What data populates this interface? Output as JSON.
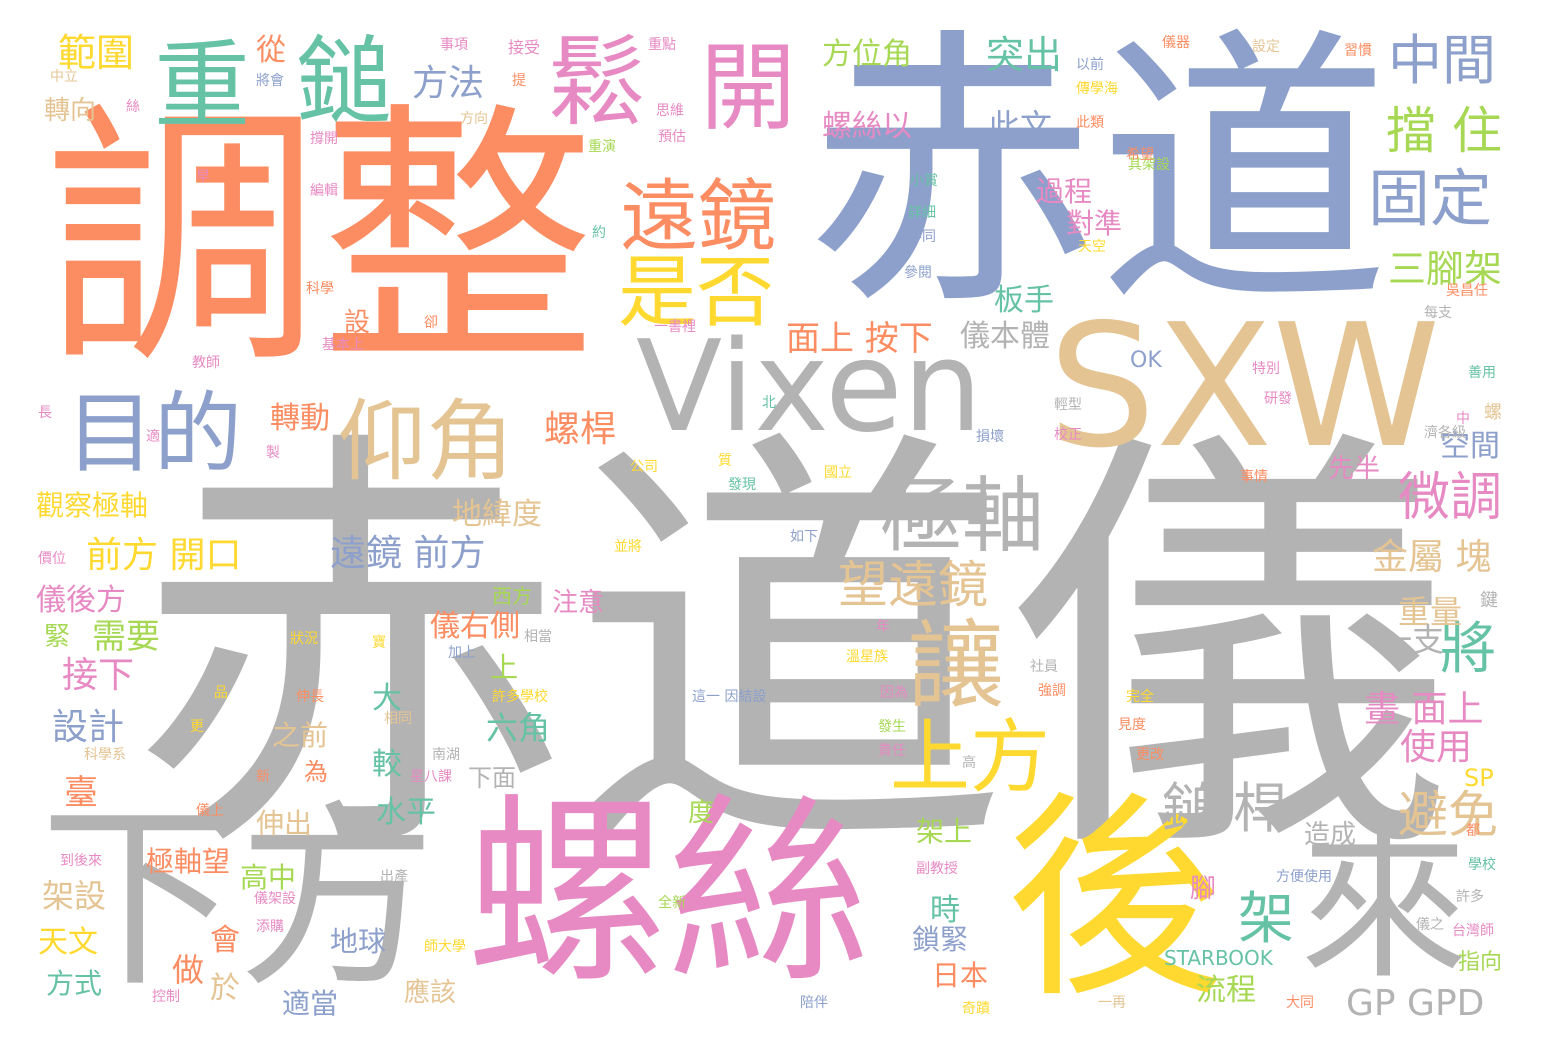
{
  "palette": {
    "gray": "#b3b3b3",
    "orange": "#fc8d62",
    "blue": "#8da0cb",
    "pink": "#e78ac3",
    "green": "#66c2a5",
    "lime": "#a6d854",
    "yellow": "#ffd92f",
    "tan": "#e5c494"
  },
  "words": [
    {
      "text": "赤道儀",
      "color": "gray"
    },
    {
      "text": "赤道",
      "color": "blue"
    },
    {
      "text": "調整",
      "color": "orange"
    },
    {
      "text": "SXW",
      "color": "tan"
    },
    {
      "text": "Vixen",
      "color": "gray"
    },
    {
      "text": "螺絲",
      "color": "pink"
    },
    {
      "text": "下方",
      "color": "gray"
    },
    {
      "text": "後",
      "color": "yellow"
    },
    {
      "text": "來",
      "color": "gray"
    },
    {
      "text": "重",
      "color": "green"
    },
    {
      "text": "鎚",
      "color": "green"
    },
    {
      "text": "鬆",
      "color": "pink"
    },
    {
      "text": "開",
      "color": "pink"
    },
    {
      "text": "目的",
      "color": "blue"
    },
    {
      "text": "仰角",
      "color": "tan"
    },
    {
      "text": "遠鏡",
      "color": "orange"
    },
    {
      "text": "是否",
      "color": "yellow"
    },
    {
      "text": "極軸",
      "color": "gray"
    },
    {
      "text": "讓",
      "color": "tan"
    },
    {
      "text": "上方",
      "color": "yellow"
    },
    {
      "text": "中間",
      "color": "blue"
    },
    {
      "text": "擋 住",
      "color": "lime"
    },
    {
      "text": "固定",
      "color": "blue"
    },
    {
      "text": "望遠鏡",
      "color": "tan"
    },
    {
      "text": "微調",
      "color": "pink"
    },
    {
      "text": "鎚 桿",
      "color": "gray"
    },
    {
      "text": "架",
      "color": "green"
    },
    {
      "text": "將",
      "color": "green"
    },
    {
      "text": "避免",
      "color": "tan"
    },
    {
      "text": "範圍",
      "color": "yellow"
    },
    {
      "text": "方法",
      "color": "blue"
    },
    {
      "text": "突出",
      "color": "green"
    },
    {
      "text": "此文",
      "color": "blue"
    },
    {
      "text": "方位角",
      "color": "lime"
    },
    {
      "text": "螺絲以",
      "color": "pink"
    },
    {
      "text": "過程",
      "color": "pink"
    },
    {
      "text": "對準",
      "color": "pink"
    },
    {
      "text": "三腳架",
      "color": "lime"
    },
    {
      "text": "板手",
      "color": "green"
    },
    {
      "text": "面上 按下",
      "color": "orange"
    },
    {
      "text": "儀本體",
      "color": "gray"
    },
    {
      "text": "螺桿",
      "color": "orange"
    },
    {
      "text": "遠鏡 前方",
      "color": "blue"
    },
    {
      "text": "地緯度",
      "color": "tan"
    },
    {
      "text": "前方 開口",
      "color": "yellow"
    },
    {
      "text": "觀察極軸",
      "color": "yellow"
    },
    {
      "text": "儀後方",
      "color": "pink"
    },
    {
      "text": "需要",
      "color": "lime"
    },
    {
      "text": "接下",
      "color": "pink"
    },
    {
      "text": "設計",
      "color": "blue"
    },
    {
      "text": "轉動",
      "color": "orange"
    },
    {
      "text": "金屬 塊",
      "color": "tan"
    },
    {
      "text": "空間",
      "color": "blue"
    },
    {
      "text": "重量",
      "color": "tan"
    },
    {
      "text": "一支",
      "color": "gray"
    },
    {
      "text": "畫 面上",
      "color": "pink"
    },
    {
      "text": "使用",
      "color": "pink"
    },
    {
      "text": "儀右側",
      "color": "orange"
    },
    {
      "text": "六角",
      "color": "green"
    },
    {
      "text": "大",
      "color": "green"
    },
    {
      "text": "之前",
      "color": "tan"
    },
    {
      "text": "較",
      "color": "green"
    },
    {
      "text": "水平",
      "color": "green"
    },
    {
      "text": "伸出",
      "color": "tan"
    },
    {
      "text": "極軸望",
      "color": "orange"
    },
    {
      "text": "高中",
      "color": "lime"
    },
    {
      "text": "架設",
      "color": "tan"
    },
    {
      "text": "天文",
      "color": "yellow"
    },
    {
      "text": "方式",
      "color": "green"
    },
    {
      "text": "做",
      "color": "orange"
    },
    {
      "text": "會",
      "color": "orange"
    },
    {
      "text": "於",
      "color": "tan"
    },
    {
      "text": "地球",
      "color": "blue"
    },
    {
      "text": "適當",
      "color": "blue"
    },
    {
      "text": "鎖緊",
      "color": "blue"
    },
    {
      "text": "日本",
      "color": "orange"
    },
    {
      "text": "流程",
      "color": "lime"
    },
    {
      "text": "GP GPD",
      "color": "gray"
    },
    {
      "text": "臺",
      "color": "orange"
    },
    {
      "text": "緊",
      "color": "lime"
    },
    {
      "text": "從",
      "color": "orange"
    },
    {
      "text": "注意",
      "color": "pink"
    },
    {
      "text": "時",
      "color": "green"
    },
    {
      "text": "架上",
      "color": "lime"
    },
    {
      "text": "上",
      "color": "lime"
    },
    {
      "text": "轉向",
      "color": "tan"
    },
    {
      "text": "先半",
      "color": "pink"
    },
    {
      "text": "西方",
      "color": "lime"
    },
    {
      "text": "下面",
      "color": "gray"
    },
    {
      "text": "為",
      "color": "orange"
    },
    {
      "text": "度",
      "color": "lime"
    },
    {
      "text": "腳",
      "color": "pink"
    },
    {
      "text": "應該",
      "color": "tan"
    },
    {
      "text": "造成",
      "color": "gray"
    },
    {
      "text": "SP",
      "color": "yellow"
    },
    {
      "text": "指向",
      "color": "lime"
    },
    {
      "text": "STARBOOK",
      "color": "green"
    },
    {
      "text": "OK",
      "color": "blue"
    },
    {
      "text": "設",
      "color": "orange"
    },
    {
      "text": "事項",
      "color": "pink"
    },
    {
      "text": "接受",
      "color": "pink"
    },
    {
      "text": "重點",
      "color": "pink"
    },
    {
      "text": "以前",
      "color": "blue"
    },
    {
      "text": "儀器",
      "color": "orange"
    },
    {
      "text": "設定",
      "color": "tan"
    },
    {
      "text": "習慣",
      "color": "orange"
    },
    {
      "text": "將會",
      "color": "blue"
    },
    {
      "text": "思維",
      "color": "pink"
    },
    {
      "text": "傳學海",
      "color": "yellow"
    },
    {
      "text": "此類",
      "color": "orange"
    },
    {
      "text": "方向",
      "color": "tan"
    },
    {
      "text": "重演",
      "color": "lime"
    },
    {
      "text": "其架設",
      "color": "lime"
    },
    {
      "text": "希望",
      "color": "orange"
    },
    {
      "text": "小賞",
      "color": "green"
    },
    {
      "text": "詳細",
      "color": "green"
    },
    {
      "text": "不同",
      "color": "blue"
    },
    {
      "text": "參閱",
      "color": "blue"
    },
    {
      "text": "天空",
      "color": "yellow"
    },
    {
      "text": "吳昌任",
      "color": "orange"
    },
    {
      "text": "每支",
      "color": "gray"
    },
    {
      "text": "科學",
      "color": "orange"
    },
    {
      "text": "基本上",
      "color": "pink"
    },
    {
      "text": "教師",
      "color": "pink"
    },
    {
      "text": "一書裡",
      "color": "pink"
    },
    {
      "text": "特別",
      "color": "pink"
    },
    {
      "text": "善用",
      "color": "green"
    },
    {
      "text": "研發",
      "color": "pink"
    },
    {
      "text": "輕型",
      "color": "gray"
    },
    {
      "text": "損壞",
      "color": "blue"
    },
    {
      "text": "校正",
      "color": "pink"
    },
    {
      "text": "公司",
      "color": "yellow"
    },
    {
      "text": "發現",
      "color": "green"
    },
    {
      "text": "國立",
      "color": "yellow"
    },
    {
      "text": "如下",
      "color": "blue"
    },
    {
      "text": "並將",
      "color": "yellow"
    },
    {
      "text": "狀況",
      "color": "yellow"
    },
    {
      "text": "溫星族",
      "color": "yellow"
    },
    {
      "text": "社員",
      "color": "gray"
    },
    {
      "text": "強調",
      "color": "orange"
    },
    {
      "text": "完全",
      "color": "yellow"
    },
    {
      "text": "更改",
      "color": "orange"
    },
    {
      "text": "事情",
      "color": "orange"
    },
    {
      "text": "相當",
      "color": "gray"
    },
    {
      "text": "加上",
      "color": "blue"
    },
    {
      "text": "許多學校",
      "color": "yellow"
    },
    {
      "text": "這一 因結設",
      "color": "blue"
    },
    {
      "text": "因為",
      "color": "pink"
    },
    {
      "text": "發生",
      "color": "lime"
    },
    {
      "text": "責任",
      "color": "pink"
    },
    {
      "text": "高",
      "color": "gray"
    },
    {
      "text": "星八課",
      "color": "pink"
    },
    {
      "text": "南湖",
      "color": "gray"
    },
    {
      "text": "相同",
      "color": "tan"
    },
    {
      "text": "伸長",
      "color": "orange"
    },
    {
      "text": "科學系",
      "color": "tan"
    },
    {
      "text": "新",
      "color": "orange"
    },
    {
      "text": "儀上",
      "color": "orange"
    },
    {
      "text": "到後來",
      "color": "pink"
    },
    {
      "text": "出產",
      "color": "gray"
    },
    {
      "text": "儀架設",
      "color": "pink"
    },
    {
      "text": "全新",
      "color": "lime"
    },
    {
      "text": "添購",
      "color": "pink"
    },
    {
      "text": "師大學",
      "color": "yellow"
    },
    {
      "text": "控制",
      "color": "pink"
    },
    {
      "text": "陪伴",
      "color": "blue"
    },
    {
      "text": "副教授",
      "color": "pink"
    },
    {
      "text": "方便使用",
      "color": "blue"
    },
    {
      "text": "學校",
      "color": "green"
    },
    {
      "text": "許多",
      "color": "gray"
    },
    {
      "text": "台灣師",
      "color": "pink"
    },
    {
      "text": "大同",
      "color": "orange"
    },
    {
      "text": "一再",
      "color": "tan"
    },
    {
      "text": "奇蹟",
      "color": "yellow"
    },
    {
      "text": "儀之",
      "color": "gray"
    },
    {
      "text": "鍵",
      "color": "gray"
    },
    {
      "text": "螺",
      "color": "tan"
    },
    {
      "text": "都",
      "color": "orange"
    },
    {
      "text": "濟各級",
      "color": "gray"
    },
    {
      "text": "中",
      "color": "pink"
    },
    {
      "text": "價位",
      "color": "pink"
    },
    {
      "text": "長",
      "color": "pink"
    },
    {
      "text": "適",
      "color": "pink"
    },
    {
      "text": "製",
      "color": "pink"
    },
    {
      "text": "北",
      "color": "green"
    },
    {
      "text": "質",
      "color": "yellow"
    },
    {
      "text": "年",
      "color": "pink"
    },
    {
      "text": "寶",
      "color": "yellow"
    },
    {
      "text": "更",
      "color": "yellow"
    },
    {
      "text": "品",
      "color": "yellow"
    },
    {
      "text": "見度",
      "color": "orange"
    },
    {
      "text": "早",
      "color": "pink"
    },
    {
      "text": "約",
      "color": "green"
    },
    {
      "text": "卻",
      "color": "orange"
    },
    {
      "text": "提",
      "color": "orange"
    },
    {
      "text": "絲",
      "color": "pink"
    },
    {
      "text": "中立",
      "color": "tan"
    },
    {
      "text": "撐開",
      "color": "pink"
    },
    {
      "text": "編輯",
      "color": "pink"
    },
    {
      "text": "預估",
      "color": "pink"
    }
  ]
}
